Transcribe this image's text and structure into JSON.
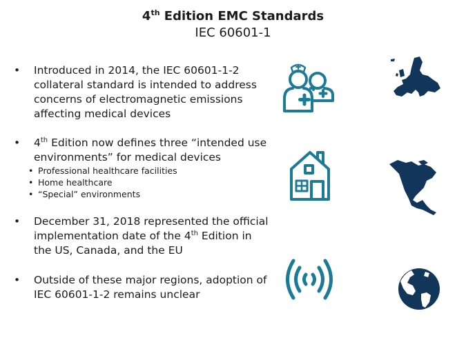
{
  "title": {
    "main_pre": "4",
    "main_sup": "th",
    "main_post": " Edition EMC Standards",
    "subtitle": "IEC 60601-1"
  },
  "bullets": [
    {
      "text": "Introduced in 2014, the IEC 60601-1-2 collateral standard is intended to address concerns of electromagnetic emissions affecting medical devices"
    },
    {
      "text_pre": "4",
      "text_sup": "th",
      "text_post": " Edition now defines three “intended use environments” for medical devices",
      "sub_items": [
        "Professional healthcare facilities",
        "Home healthcare",
        "“Special” environments"
      ]
    },
    {
      "text_pre": "December 31, 2018 represented the official implementation date of the 4",
      "text_sup": "th",
      "text_post": " Edition in the US, Canada, and the EU"
    },
    {
      "text": "Outside of these major regions, adoption of IEC 60601-1-2 remains unclear"
    }
  ],
  "bullet_char": "•",
  "icons": [
    "nurses-icon",
    "house-icon",
    "wireless-signal-icon",
    "europe-map-icon",
    "north-america-map-icon",
    "globe-icon"
  ],
  "colors": {
    "teal": "#1b7a96",
    "navy": "#12365a"
  }
}
